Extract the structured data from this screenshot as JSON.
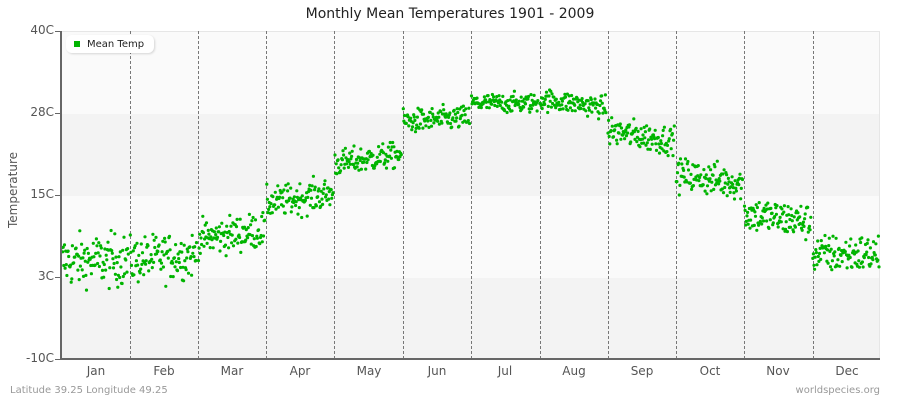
{
  "header": {
    "title": "Monthly Mean Temperatures 1901 - 2009"
  },
  "legend": {
    "label": "Mean Temp",
    "color": "#00b400"
  },
  "axes": {
    "y_title": "Temperature",
    "y_ticks": [
      {
        "label": "40C",
        "value": 40
      },
      {
        "label": "28C",
        "value": 28
      },
      {
        "label": "15C",
        "value": 15
      },
      {
        "label": "3C",
        "value": 3
      },
      {
        "label": "-10C",
        "value": -10
      }
    ],
    "x_ticks": [
      "Jan",
      "Feb",
      "Mar",
      "Apr",
      "May",
      "Jun",
      "Jul",
      "Aug",
      "Sep",
      "Oct",
      "Nov",
      "Dec"
    ]
  },
  "footer": {
    "location": "Latitude 39.25 Longitude 49.25",
    "source": "worldspecies.org"
  },
  "colors": {
    "point": "#00b400",
    "band_light": "#fafafa",
    "band_dark": "#f3f3f3",
    "axis": "#666666"
  },
  "chart_data": {
    "type": "scatter",
    "title": "Monthly Mean Temperatures 1901 - 2009",
    "xlabel": "",
    "ylabel": "Temperature",
    "ylim": [
      -10,
      40
    ],
    "y_ticks": [
      "-10C",
      "3C",
      "15C",
      "28C",
      "40C"
    ],
    "categories": [
      "Jan",
      "Feb",
      "Mar",
      "Apr",
      "May",
      "Jun",
      "Jul",
      "Aug",
      "Sep",
      "Oct",
      "Nov",
      "Dec"
    ],
    "series": [
      {
        "name": "Mean Temp",
        "years": "1901-2009",
        "points_per_month": 109,
        "monthly_mean": [
          5.0,
          5.5,
          9.0,
          14.5,
          20.5,
          26.5,
          29.0,
          29.0,
          24.0,
          17.5,
          11.5,
          6.0
        ],
        "monthly_min": [
          0.5,
          0.8,
          5.0,
          11.5,
          17.5,
          24.0,
          27.0,
          26.5,
          21.0,
          13.5,
          7.0,
          2.5
        ],
        "monthly_max": [
          11.5,
          10.5,
          12.5,
          18.0,
          23.0,
          29.0,
          31.0,
          31.0,
          27.0,
          20.5,
          14.5,
          10.5
        ]
      }
    ],
    "legend_position": "top-left",
    "grid": "alternating horizontal bands, dashed vertical month separators"
  }
}
